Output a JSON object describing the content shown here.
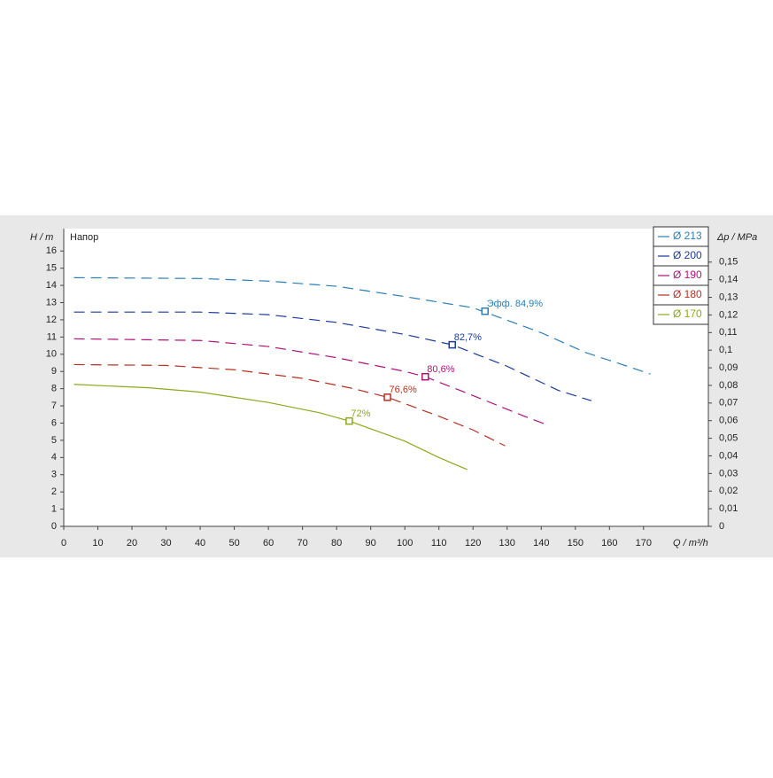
{
  "chart_data": {
    "type": "line",
    "ylabel": "H / m",
    "ylabel_note": "Напор",
    "y2label": "Δp / MPa",
    "xlabel": "Q / m³/h",
    "xlim": [
      0,
      189
    ],
    "ylim": [
      0,
      17.3
    ],
    "y2lim": [
      0,
      0.169
    ],
    "xticks": [
      0,
      10,
      20,
      30,
      40,
      50,
      60,
      70,
      80,
      90,
      100,
      110,
      120,
      130,
      140,
      150,
      160,
      170
    ],
    "yticks": [
      0,
      1,
      2,
      3,
      4,
      5,
      6,
      7,
      8,
      9,
      10,
      11,
      12,
      13,
      14,
      15,
      16
    ],
    "y2ticks": [
      0,
      {
        "value": 0.01,
        "label": "0,01"
      },
      {
        "value": 0.02,
        "label": "0,02"
      },
      {
        "value": 0.03,
        "label": "0,03"
      },
      {
        "value": 0.04,
        "label": "0,04"
      },
      {
        "value": 0.05,
        "label": "0,05"
      },
      {
        "value": 0.06,
        "label": "0,06"
      },
      {
        "value": 0.07,
        "label": "0,07"
      },
      {
        "value": 0.08,
        "label": "0,08"
      },
      {
        "value": 0.09,
        "label": "0,09"
      },
      {
        "value": 0.1,
        "label": "0,1"
      },
      {
        "value": 0.11,
        "label": "0,11"
      },
      {
        "value": 0.12,
        "label": "0,12"
      },
      {
        "value": 0.13,
        "label": "0,13"
      },
      {
        "value": 0.14,
        "label": "0,14"
      },
      {
        "value": 0.15,
        "label": "0,15"
      }
    ],
    "grid": false,
    "legend": "top-right",
    "series": [
      {
        "name": "Ø 213",
        "color": "#2a7fb8",
        "dashed": true,
        "x": [
          3,
          40,
          60,
          80,
          100,
          120,
          140,
          153,
          163,
          172
        ],
        "values": [
          14.45,
          14.4,
          14.25,
          13.95,
          13.35,
          12.7,
          11.25,
          10.1,
          9.45,
          8.85
        ],
        "bep_x": 123.5,
        "bep_y": 12.5,
        "bep_label": "Эфф.  84,9%"
      },
      {
        "name": "Ø 200",
        "color": "#1a3a9c",
        "dashed": true,
        "x": [
          3,
          40,
          60,
          80,
          100,
          113.9,
          130,
          145,
          154.7
        ],
        "values": [
          12.45,
          12.45,
          12.3,
          11.85,
          11.15,
          10.55,
          9.3,
          7.9,
          7.3
        ],
        "bep_x": 113.9,
        "bep_y": 10.55,
        "bep_label": "82,7%"
      },
      {
        "name": "Ø 190",
        "color": "#b0127a",
        "dashed": true,
        "x": [
          3,
          40,
          60,
          80,
          100,
          106,
          120,
          135,
          142.2
        ],
        "values": [
          10.9,
          10.8,
          10.45,
          9.8,
          9.0,
          8.69,
          7.6,
          6.4,
          5.86
        ],
        "bep_x": 106,
        "bep_y": 8.69,
        "bep_label": "80,6%"
      },
      {
        "name": "Ø 180",
        "color": "#b83020",
        "dashed": true,
        "x": [
          3,
          30,
          50,
          70,
          85,
          94.9,
          110,
          120,
          129.4
        ],
        "values": [
          9.4,
          9.35,
          9.1,
          8.6,
          8.0,
          7.5,
          6.4,
          5.6,
          4.68
        ],
        "bep_x": 94.9,
        "bep_y": 7.5,
        "bep_label": "76,6%"
      },
      {
        "name": "Ø 170",
        "color": "#8aaa1a",
        "dashed": false,
        "x": [
          3,
          25,
          40,
          60,
          75,
          83.7,
          100,
          110,
          118.3
        ],
        "values": [
          8.25,
          8.05,
          7.8,
          7.2,
          6.6,
          6.12,
          4.95,
          4.0,
          3.3
        ],
        "bep_x": 83.7,
        "bep_y": 6.12,
        "bep_label": "72%"
      }
    ]
  }
}
